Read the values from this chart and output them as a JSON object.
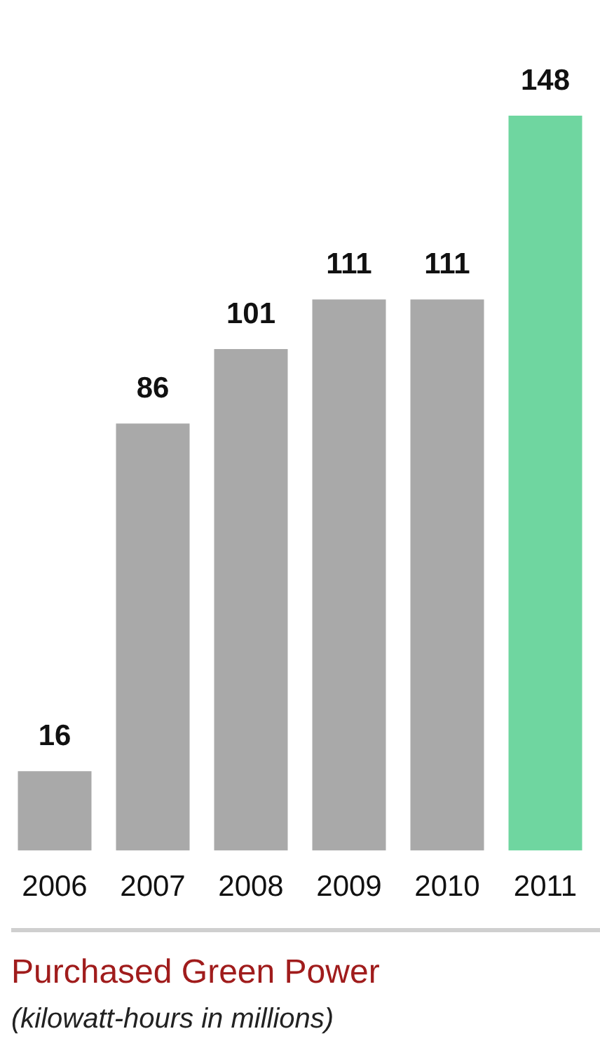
{
  "chart_data": {
    "type": "bar",
    "title": "Purchased Green Power",
    "subtitle": "(kilowatt-hours in millions)",
    "categories": [
      "2006",
      "2007",
      "2008",
      "2009",
      "2010",
      "2011"
    ],
    "values": [
      16,
      86,
      101,
      111,
      111,
      148
    ],
    "colors": [
      "#a9a9a9",
      "#a9a9a9",
      "#a9a9a9",
      "#a9a9a9",
      "#a9a9a9",
      "#6fd6a0"
    ],
    "data_labels": true,
    "grid": false,
    "legend": false
  }
}
